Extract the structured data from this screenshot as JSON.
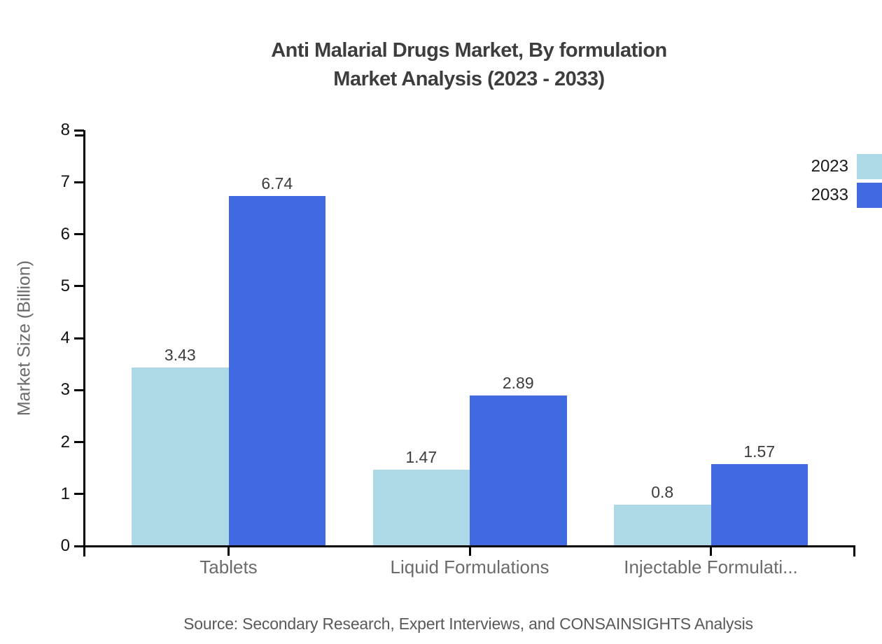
{
  "title": {
    "line1": "Anti Malarial Drugs Market, By formulation",
    "line2": "Market Analysis (2023 - 2033)"
  },
  "axes": {
    "y_title": "Market Size (Billion)",
    "y_ticks": [
      0,
      1,
      2,
      3,
      4,
      5,
      6,
      7,
      8
    ]
  },
  "legend": {
    "position": "right",
    "items": [
      {
        "label": "2023",
        "color": "#ADD8E6"
      },
      {
        "label": "2033",
        "color": "#4169E1"
      }
    ]
  },
  "source": "Source: Secondary Research, Expert Interviews, and CONSAINSIGHTS Analysis",
  "chart_data": {
    "type": "bar",
    "title": "Anti Malarial Drugs Market, By formulation Market Analysis (2023 - 2033)",
    "categories": [
      "Tablets",
      "Liquid Formulations",
      "Injectable Formulati..."
    ],
    "series": [
      {
        "name": "2023",
        "color": "#ADD8E6",
        "values": [
          3.43,
          1.47,
          0.8
        ]
      },
      {
        "name": "2033",
        "color": "#4169E1",
        "values": [
          6.74,
          2.89,
          1.57
        ]
      }
    ],
    "xlabel": "",
    "ylabel": "Market Size (Billion)",
    "ylim": [
      0,
      8
    ],
    "grid": false,
    "legend_position": "right",
    "axis_color": "#000000"
  }
}
